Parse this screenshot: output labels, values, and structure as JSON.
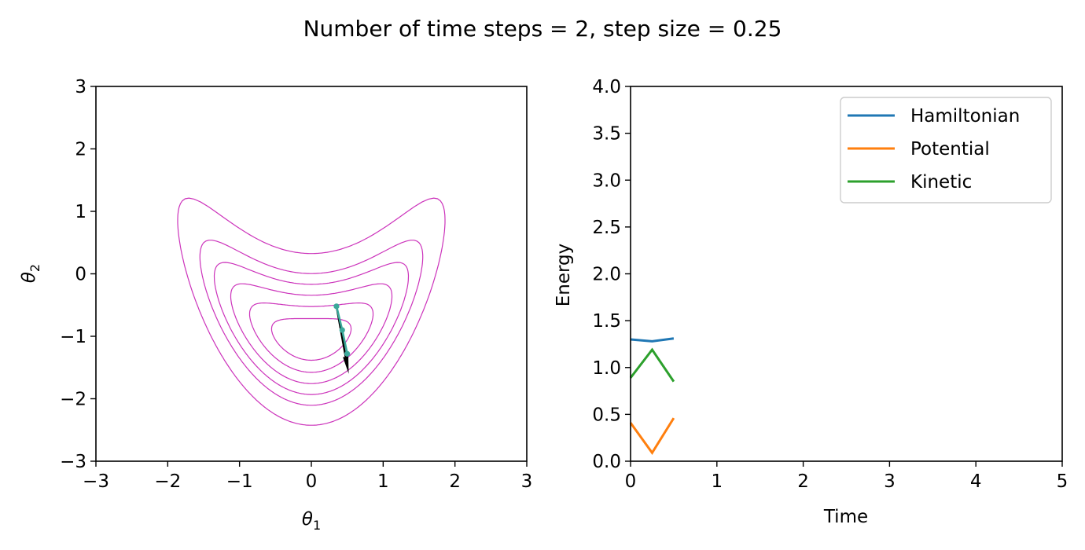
{
  "figure": {
    "title": "Number of time steps = 2, step size = 0.25"
  },
  "chart_data": [
    {
      "type": "contour",
      "xlabel_main": "θ",
      "xlabel_sub": "1",
      "ylabel_main": "θ",
      "ylabel_sub": "2",
      "xlim": [
        -3,
        3
      ],
      "ylim": [
        -3,
        3
      ],
      "xticks": [
        -3,
        -2,
        -1,
        0,
        1,
        2,
        3
      ],
      "yticks": [
        -3,
        -2,
        -1,
        0,
        1,
        2,
        3
      ],
      "xtick_labels": [
        "−3",
        "−2",
        "−1",
        "0",
        "1",
        "2",
        "3"
      ],
      "ytick_labels": [
        "−3",
        "−2",
        "−1",
        "0",
        "1",
        "2",
        "3"
      ],
      "contour_color": "#cc33bb",
      "contour_levels": [
        0.1,
        0.25,
        0.45,
        0.7,
        1.0,
        1.7
      ],
      "trajectory": {
        "color": "#3aa89a",
        "points": [
          {
            "x": 0.35,
            "y": -0.52
          },
          {
            "x": 0.43,
            "y": -0.9
          },
          {
            "x": 0.5,
            "y": -1.28
          }
        ]
      },
      "momentum_arrow": {
        "color": "#000000",
        "from": {
          "x": 0.35,
          "y": -0.52
        },
        "to": {
          "x": 0.52,
          "y": -1.6
        }
      }
    },
    {
      "type": "line",
      "xlabel": "Time",
      "ylabel": "Energy",
      "xlim": [
        0,
        5
      ],
      "ylim": [
        0,
        4
      ],
      "xticks": [
        0,
        1,
        2,
        3,
        4,
        5
      ],
      "yticks": [
        0.0,
        0.5,
        1.0,
        1.5,
        2.0,
        2.5,
        3.0,
        3.5,
        4.0
      ],
      "xtick_labels": [
        "0",
        "1",
        "2",
        "3",
        "4",
        "5"
      ],
      "ytick_labels": [
        "0.0",
        "0.5",
        "1.0",
        "1.5",
        "2.0",
        "2.5",
        "3.0",
        "3.5",
        "4.0"
      ],
      "legend_position": "top-right",
      "x": [
        0,
        0.25,
        0.5
      ],
      "series": [
        {
          "name": "Hamiltonian",
          "color": "#1f77b4",
          "values": [
            1.3,
            1.28,
            1.31
          ]
        },
        {
          "name": "Potential",
          "color": "#ff7f0e",
          "values": [
            0.41,
            0.09,
            0.46
          ]
        },
        {
          "name": "Kinetic",
          "color": "#2ca02c",
          "values": [
            0.89,
            1.19,
            0.85
          ]
        }
      ]
    }
  ]
}
